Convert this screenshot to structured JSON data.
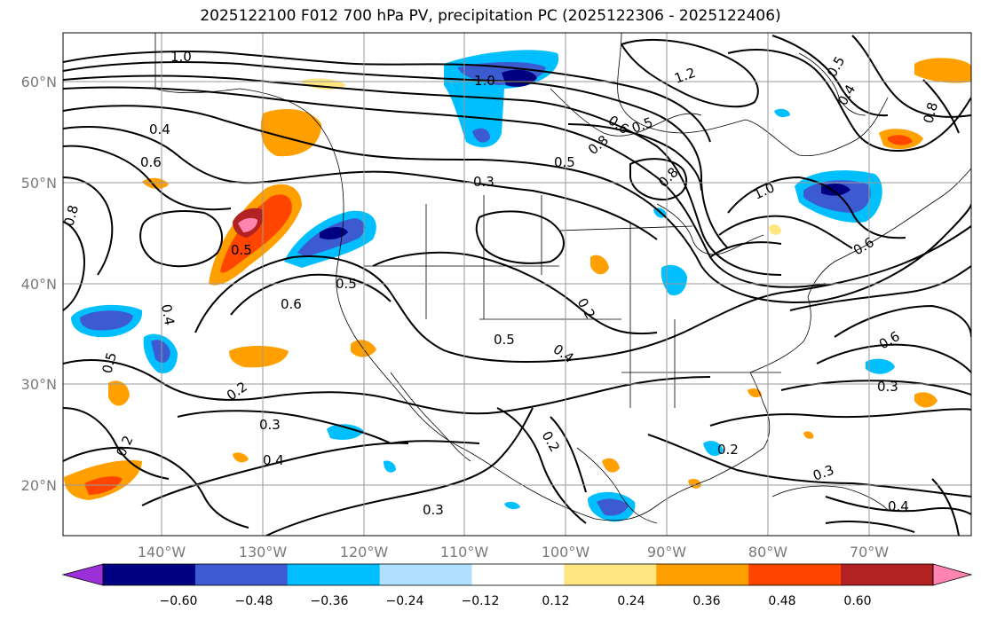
{
  "title": "2025122100 F012 700 hPa PV, precipitation PC (2025122306 - 2025122406)",
  "lat_labels": [
    "60°N",
    "50°N",
    "40°N",
    "30°N",
    "20°N"
  ],
  "lon_labels": [
    "140°W",
    "130°W",
    "120°W",
    "110°W",
    "100°W",
    "90°W",
    "80°W",
    "70°W"
  ],
  "colorbar": {
    "colors": [
      "#9b30d9",
      "#000080",
      "#3d5bd1",
      "#00bfff",
      "#b0e0ff",
      "#ffffff",
      "#ffe680",
      "#ffa000",
      "#ff4500",
      "#b22222",
      "#ff85b0"
    ],
    "tick_labels": [
      "−0.60",
      "−0.48",
      "−0.36",
      "−0.24",
      "−0.12",
      "0.12",
      "0.24",
      "0.36",
      "0.48",
      "0.60"
    ]
  },
  "contour_labels": [
    "1.0",
    "0.4",
    "0.6",
    "0.8",
    "0.5",
    "0.6",
    "0.5",
    "0.4",
    "0.5",
    "0.2",
    "0.3",
    "0.4",
    "0.2",
    "0.3",
    "1.0",
    "0.3",
    "0.5",
    "0.8",
    "0.6",
    "0.5",
    "1.2",
    "0.2",
    "0.5",
    "0.4",
    "0.2",
    "1.0",
    "0.8",
    "0.6",
    "0.6",
    "0.3",
    "0.2",
    "0.3",
    "0.4",
    "0.5",
    "0.4",
    "0.8"
  ]
}
